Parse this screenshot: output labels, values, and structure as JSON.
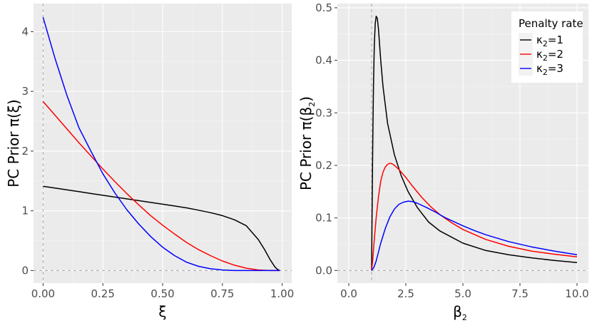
{
  "chart_data": [
    {
      "type": "line",
      "xlabel": "ξ",
      "ylabel_prefix": "PC Prior π(",
      "ylabel_var": "ξ",
      "ylabel_suffix": ")",
      "xlim": [
        -0.04,
        1.04
      ],
      "ylim": [
        -0.21,
        4.47
      ],
      "xticks": [
        0,
        0.25,
        0.5,
        0.75,
        1.0
      ],
      "xtick_labels": [
        "0.00",
        "0.25",
        "0.50",
        "0.75",
        "1.00"
      ],
      "yticks": [
        0,
        1,
        2,
        3,
        4
      ],
      "ytick_labels": [
        "0",
        "1",
        "2",
        "3",
        "4"
      ],
      "ref_lines": {
        "vline_x": 0,
        "hline_y": 0
      },
      "grid": true,
      "series": [
        {
          "color": "#000000",
          "x": [
            0,
            0.05,
            0.1,
            0.15,
            0.2,
            0.25,
            0.3,
            0.35,
            0.4,
            0.45,
            0.5,
            0.55,
            0.6,
            0.65,
            0.7,
            0.75,
            0.8,
            0.85,
            0.9,
            0.925,
            0.95,
            0.97,
            0.98,
            0.99
          ],
          "values": [
            1.41,
            1.38,
            1.35,
            1.32,
            1.29,
            1.26,
            1.23,
            1.2,
            1.17,
            1.14,
            1.11,
            1.08,
            1.05,
            1.01,
            0.97,
            0.92,
            0.85,
            0.75,
            0.52,
            0.36,
            0.18,
            0.06,
            0.02,
            0.0
          ]
        },
        {
          "color": "#ff0000",
          "x": [
            0,
            0.05,
            0.1,
            0.15,
            0.2,
            0.25,
            0.3,
            0.35,
            0.4,
            0.45,
            0.5,
            0.55,
            0.6,
            0.65,
            0.7,
            0.75,
            0.8,
            0.85,
            0.9,
            0.95,
            0.99
          ],
          "values": [
            2.83,
            2.6,
            2.37,
            2.14,
            1.92,
            1.7,
            1.49,
            1.29,
            1.1,
            0.92,
            0.76,
            0.61,
            0.47,
            0.35,
            0.25,
            0.16,
            0.09,
            0.04,
            0.01,
            0.0,
            0.0
          ]
        },
        {
          "color": "#0000ff",
          "x": [
            0,
            0.05,
            0.1,
            0.15,
            0.2,
            0.25,
            0.3,
            0.35,
            0.4,
            0.45,
            0.5,
            0.55,
            0.6,
            0.65,
            0.7,
            0.75,
            0.8,
            0.85,
            0.9,
            0.95,
            0.99
          ],
          "values": [
            4.24,
            3.55,
            2.93,
            2.39,
            2.0,
            1.62,
            1.3,
            1.02,
            0.78,
            0.57,
            0.39,
            0.25,
            0.14,
            0.07,
            0.03,
            0.01,
            0.0,
            0.0,
            0.0,
            0.0,
            0.0
          ]
        }
      ]
    },
    {
      "type": "line",
      "xlabel_var": "β",
      "xlabel_sub": "2",
      "ylabel_prefix": "PC Prior π(",
      "ylabel_var": "β",
      "ylabel_sub": "2",
      "ylabel_suffix": ")",
      "xlim": [
        -0.5,
        10.5
      ],
      "ylim": [
        -0.024,
        0.508
      ],
      "xticks": [
        0,
        2.5,
        5,
        7.5,
        10
      ],
      "xtick_labels": [
        "0.0",
        "2.5",
        "5.0",
        "7.5",
        "10.0"
      ],
      "yticks": [
        0,
        0.1,
        0.2,
        0.3,
        0.4,
        0.5
      ],
      "ytick_labels": [
        "0.0",
        "0.1",
        "0.2",
        "0.3",
        "0.4",
        "0.5"
      ],
      "ref_lines": {
        "vline_x": 1,
        "hline_y": 0
      },
      "grid": true,
      "legend": {
        "title": "Penalty rate",
        "position": "top-right",
        "entries": [
          {
            "var": "κ",
            "sub": "2",
            "eq": "=1",
            "color": "#000000"
          },
          {
            "var": "κ",
            "sub": "2",
            "eq": "=2",
            "color": "#ff0000"
          },
          {
            "var": "κ",
            "sub": "2",
            "eq": "=3",
            "color": "#0000ff"
          }
        ]
      },
      "series": [
        {
          "color": "#000000",
          "x": [
            1.0,
            1.02,
            1.05,
            1.08,
            1.12,
            1.16,
            1.2,
            1.25,
            1.3,
            1.4,
            1.5,
            1.7,
            2.0,
            2.3,
            2.6,
            3.0,
            3.5,
            4.0,
            5.0,
            6.0,
            7.0,
            8.0,
            9.0,
            10.0
          ],
          "values": [
            0.0,
            0.1,
            0.24,
            0.35,
            0.43,
            0.47,
            0.484,
            0.48,
            0.46,
            0.4,
            0.35,
            0.28,
            0.22,
            0.18,
            0.15,
            0.12,
            0.092,
            0.075,
            0.052,
            0.038,
            0.03,
            0.024,
            0.019,
            0.015
          ]
        },
        {
          "color": "#ff0000",
          "x": [
            1.0,
            1.05,
            1.1,
            1.2,
            1.3,
            1.4,
            1.5,
            1.6,
            1.7,
            1.8,
            1.9,
            2.0,
            2.2,
            2.5,
            2.8,
            3.2,
            3.6,
            4.0,
            4.5,
            5.0,
            6.0,
            7.0,
            8.0,
            9.0,
            10.0
          ],
          "values": [
            0.0,
            0.02,
            0.05,
            0.1,
            0.14,
            0.17,
            0.187,
            0.197,
            0.202,
            0.204,
            0.203,
            0.2,
            0.192,
            0.177,
            0.16,
            0.139,
            0.121,
            0.106,
            0.091,
            0.078,
            0.059,
            0.046,
            0.037,
            0.031,
            0.026
          ]
        },
        {
          "color": "#0000ff",
          "x": [
            1.0,
            1.1,
            1.2,
            1.3,
            1.4,
            1.6,
            1.8,
            2.0,
            2.2,
            2.4,
            2.6,
            2.8,
            3.0,
            3.4,
            3.8,
            4.2,
            4.6,
            5.0,
            5.5,
            6.0,
            7.0,
            8.0,
            9.0,
            10.0
          ],
          "values": [
            0.0,
            0.006,
            0.018,
            0.035,
            0.052,
            0.08,
            0.102,
            0.117,
            0.126,
            0.13,
            0.132,
            0.131,
            0.128,
            0.12,
            0.111,
            0.101,
            0.093,
            0.085,
            0.076,
            0.068,
            0.055,
            0.045,
            0.037,
            0.03
          ]
        }
      ]
    }
  ]
}
